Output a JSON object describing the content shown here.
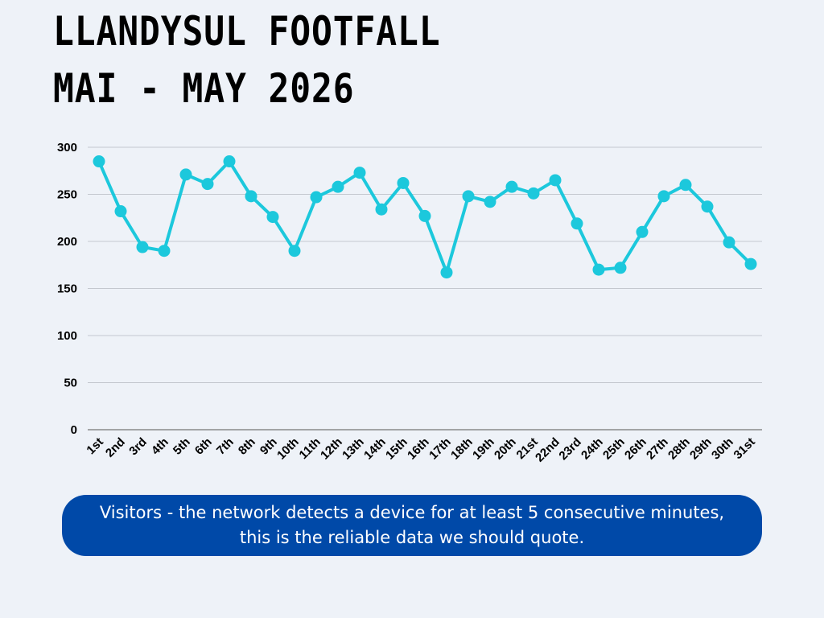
{
  "header": {
    "title_line1": "LLANDYSUL FOOTFALL",
    "title_line2": "MAI - MAY 2026"
  },
  "note": {
    "line1": "Visitors - the network detects a device for at least 5 consecutive minutes,",
    "line2": "this is the reliable data we should quote."
  },
  "colors": {
    "line": "#1cc8dc",
    "note_bg": "#0049a8",
    "grid": "#c4c8cf",
    "axis": "#555555"
  },
  "chart_data": {
    "type": "line",
    "title": "LLANDYSUL FOOTFALL MAI - MAY 2026",
    "xlabel": "",
    "ylabel": "",
    "ylim": [
      0,
      300
    ],
    "yticks": [
      0,
      50,
      100,
      150,
      200,
      250,
      300
    ],
    "grid": true,
    "legend": "none",
    "categories": [
      "1st",
      "2nd",
      "3rd",
      "4th",
      "5th",
      "6th",
      "7th",
      "8th",
      "9th",
      "10th",
      "11th",
      "12th",
      "13th",
      "14th",
      "15th",
      "16th",
      "17th",
      "18th",
      "19th",
      "20th",
      "21st",
      "22nd",
      "23rd",
      "24th",
      "25th",
      "26th",
      "27th",
      "28th",
      "29th",
      "30th",
      "31st"
    ],
    "series": [
      {
        "values": [
          285,
          232,
          194,
          190,
          271,
          261,
          285,
          248,
          226,
          190,
          247,
          258,
          273,
          234,
          262,
          227,
          167,
          248,
          242,
          258,
          251,
          265,
          219,
          170,
          172,
          210,
          248,
          260,
          237,
          199,
          176
        ]
      }
    ]
  }
}
